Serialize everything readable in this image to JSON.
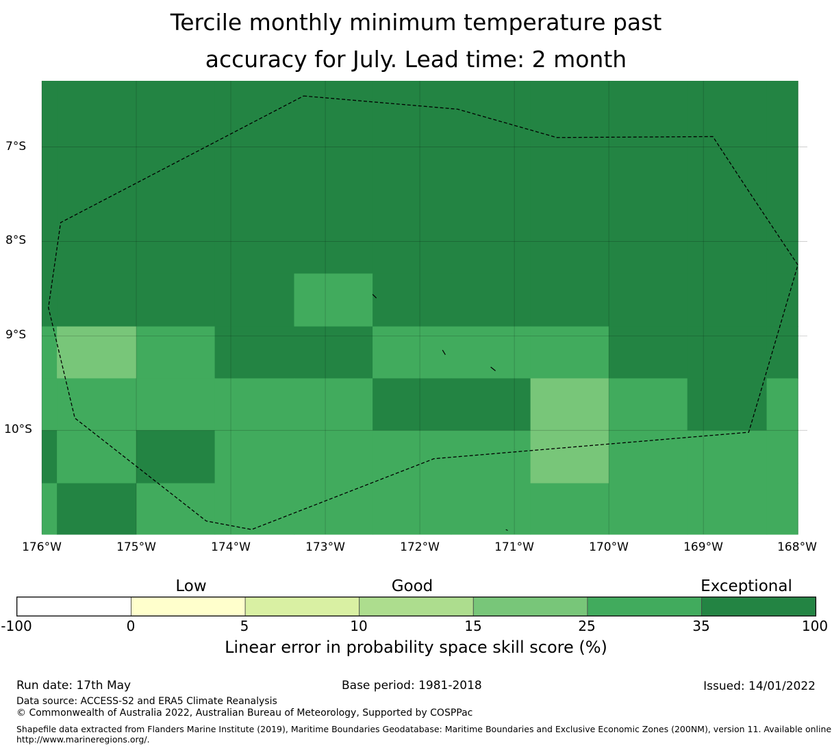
{
  "title": {
    "line1": "Tercile monthly minimum temperature past",
    "line2": "accuracy for July. Lead time: 2 month"
  },
  "map": {
    "lat_labels": [
      "7°S",
      "8°S",
      "9°S",
      "10°S"
    ],
    "lon_labels": [
      "176°W",
      "175°W",
      "174°W",
      "173°W",
      "172°W",
      "171°W",
      "170°W",
      "169°W",
      "168°W"
    ],
    "grid": {
      "lon_cells": [
        -176.0,
        -175.84,
        -175.0,
        -174.17,
        -173.33,
        -172.5,
        -171.67,
        -170.83,
        -170.0,
        -169.17,
        -168.33,
        -168.0
      ],
      "lat_cells": [
        -6.3,
        -8.34,
        -8.9,
        -9.45,
        -10.0,
        -10.56,
        -11.1
      ],
      "values": [
        [
          40,
          40,
          40,
          40,
          40,
          40,
          40,
          40,
          40,
          40,
          40
        ],
        [
          40,
          40,
          40,
          40,
          30,
          40,
          40,
          40,
          40,
          40,
          40
        ],
        [
          30,
          20,
          30,
          40,
          40,
          30,
          30,
          30,
          40,
          40,
          40
        ],
        [
          30,
          30,
          30,
          30,
          30,
          40,
          40,
          20,
          30,
          40,
          30
        ],
        [
          40,
          30,
          40,
          30,
          30,
          30,
          30,
          20,
          30,
          30,
          30
        ],
        [
          30,
          40,
          30,
          30,
          30,
          30,
          30,
          30,
          30,
          30,
          30
        ]
      ]
    },
    "eez_boundary": [
      [
        -173.23,
        -6.46
      ],
      [
        -171.6,
        -6.6
      ],
      [
        -170.55,
        -6.9
      ],
      [
        -168.9,
        -6.89
      ],
      [
        -168.5,
        -7.5
      ],
      [
        -168.0,
        -8.25
      ],
      [
        -168.52,
        -10.02
      ],
      [
        -171.85,
        -10.3
      ],
      [
        -173.78,
        -11.05
      ],
      [
        -174.26,
        -10.96
      ],
      [
        -175.65,
        -9.87
      ],
      [
        -175.93,
        -8.7
      ],
      [
        -175.8,
        -7.8
      ],
      [
        -173.23,
        -6.46
      ]
    ],
    "islands": [
      [
        [
          -172.5,
          -8.56
        ],
        [
          -172.46,
          -8.6
        ]
      ],
      [
        [
          -171.76,
          -9.15
        ],
        [
          -171.73,
          -9.2
        ]
      ],
      [
        [
          -171.25,
          -9.33
        ],
        [
          -171.2,
          -9.37
        ]
      ],
      [
        [
          -171.09,
          -11.05
        ],
        [
          -171.07,
          -11.06
        ]
      ]
    ]
  },
  "colorbar": {
    "categories": [
      "Low",
      "Good",
      "Exceptional"
    ],
    "ticks": [
      "-100",
      "0",
      "5",
      "10",
      "15",
      "25",
      "35",
      "100"
    ],
    "colors": [
      "#ffffff",
      "#ffffcc",
      "#d9f0a3",
      "#addd8e",
      "#78c679",
      "#41ab5d",
      "#238443"
    ],
    "label": "Linear error in probability space skill score (%)"
  },
  "footer": {
    "run_date": "Run date: 17th May",
    "base_period": "Base period: 1981-2018",
    "issued": "Issued: 14/01/2022",
    "data_source": "Data source: ACCESS-S2 and ERA5 Climate Reanalysis",
    "copyright": "© Commonwealth of Australia 2022, Australian Bureau of Meteorology, Supported by COSPPac",
    "shapefile_line1": "Shapefile data extracted from Flanders Marine Institute (2019), Maritime Boundaries Geodatabase: Maritime Boundaries and Exclusive Economic Zones (200NM), version 11. Available online at",
    "shapefile_line2": "http://www.marineregions.org/."
  }
}
